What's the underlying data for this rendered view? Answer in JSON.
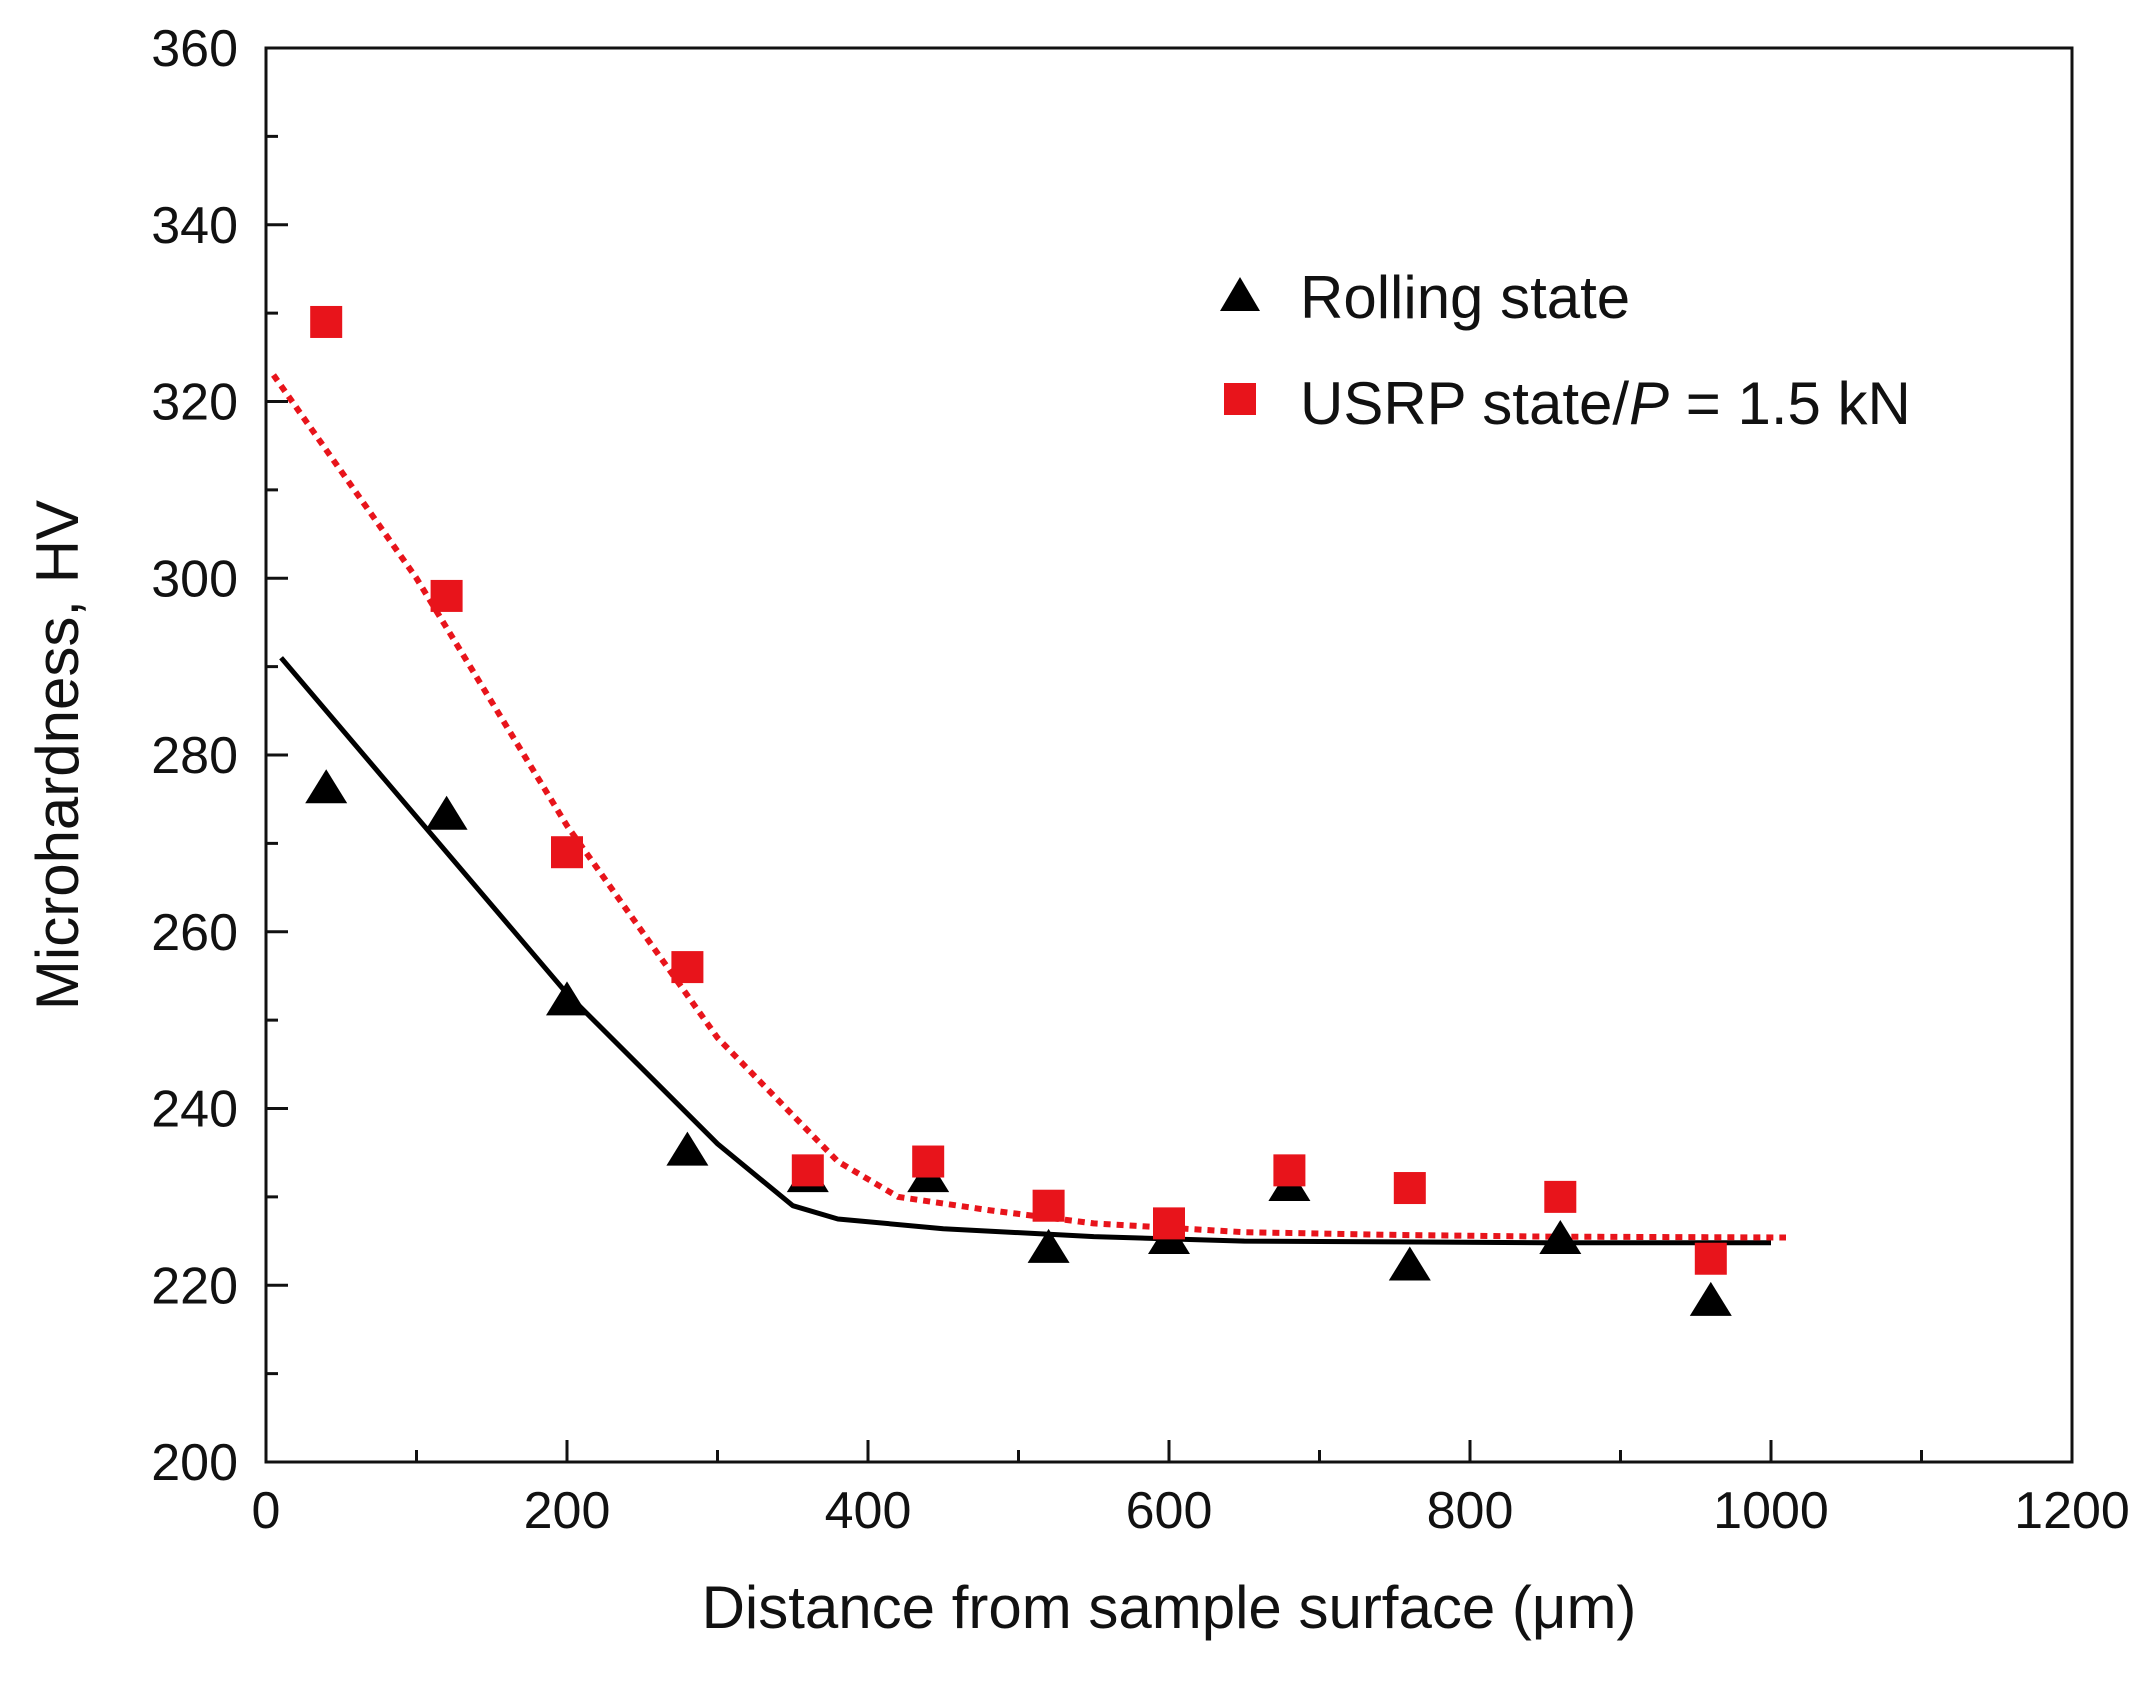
{
  "chart_data": {
    "type": "scatter",
    "title": "",
    "xlabel": "Distance from sample surface (μm)",
    "ylabel": "Microhardness, HV",
    "xlim": [
      0,
      1200
    ],
    "ylim": [
      200,
      360
    ],
    "xticks": [
      0,
      200,
      400,
      600,
      800,
      1000,
      1200
    ],
    "xtick_labels": [
      "0",
      "200",
      "400",
      "600",
      "800",
      "1000",
      "1200"
    ],
    "yticks": [
      200,
      220,
      240,
      260,
      280,
      300,
      320,
      340,
      360
    ],
    "ytick_labels": [
      "200",
      "220",
      "240",
      "260",
      "280",
      "300",
      "320",
      "340",
      "360"
    ],
    "grid": false,
    "legend_position": "top-right",
    "series": [
      {
        "name": "Rolling state",
        "marker": "triangle",
        "color": "#000000",
        "x": [
          40,
          120,
          200,
          280,
          360,
          440,
          520,
          600,
          680,
          760,
          860,
          960
        ],
        "y": [
          276,
          273,
          252,
          235,
          232,
          232,
          224,
          225,
          231,
          222,
          225,
          218
        ]
      },
      {
        "name": "USRP state/",
        "name_italic": "P",
        "name_suffix": " = 1.5 kN",
        "marker": "square",
        "color": "#e8141b",
        "x": [
          40,
          120,
          200,
          280,
          360,
          440,
          520,
          600,
          680,
          760,
          860,
          960
        ],
        "y": [
          329,
          298,
          269,
          256,
          233,
          234,
          229,
          227,
          233,
          231,
          230,
          223
        ]
      }
    ],
    "fit_lines": [
      {
        "series": "Rolling state",
        "style": "solid",
        "color": "#000000",
        "x": [
          10,
          100,
          200,
          300,
          350,
          380,
          450,
          550,
          650,
          750,
          850,
          1000
        ],
        "y": [
          291,
          273,
          253,
          236,
          229,
          227.5,
          226.4,
          225.5,
          225,
          224.9,
          224.8,
          224.8
        ]
      },
      {
        "series": "USRP state",
        "style": "dotted",
        "color": "#e8141b",
        "x": [
          5,
          100,
          200,
          300,
          380,
          420,
          480,
          550,
          650,
          750,
          850,
          1010
        ],
        "y": [
          323,
          300,
          272,
          248,
          234,
          230,
          228.5,
          227,
          226,
          225.7,
          225.5,
          225.4
        ]
      }
    ]
  }
}
